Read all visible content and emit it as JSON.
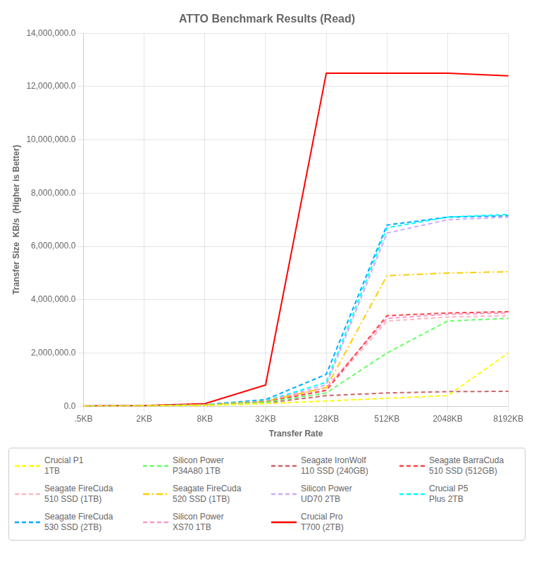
{
  "chart_data": {
    "type": "line",
    "title": "ATTO Benchmark Results (Read)",
    "xlabel": "Transfer Rate",
    "ylabel": "Transfer Size  KB/s  (Higher is Better)",
    "categories": [
      ".5KB",
      "2KB",
      "8KB",
      "32KB",
      "128KB",
      "512KB",
      "2048KB",
      "8192KB"
    ],
    "ylim": [
      0,
      14000000
    ],
    "yticks": [
      {
        "value": 0,
        "label": "0.0"
      },
      {
        "value": 2000000,
        "label": "2,000,000.0"
      },
      {
        "value": 4000000,
        "label": "4,000,000.0"
      },
      {
        "value": 6000000,
        "label": "6,000,000.0"
      },
      {
        "value": 8000000,
        "label": "8,000,000.0"
      },
      {
        "value": 10000000,
        "label": "10,000,000.0"
      },
      {
        "value": 12000000,
        "label": "12,000,000.0"
      },
      {
        "value": 14000000,
        "label": "14,000,000.0"
      }
    ],
    "grid": true,
    "legend": "bottom",
    "marker": "none",
    "series": [
      {
        "name": "Crucial P1\n1TB",
        "color": "#FFFF00",
        "line_style": "dashed",
        "values": [
          5000,
          10000,
          30000,
          100000,
          200000,
          300000,
          400000,
          2000000
        ]
      },
      {
        "name": "Silicon Power\nP34A80 1TB",
        "color": "#66FF66",
        "line_style": "dashed",
        "values": [
          6000,
          12000,
          40000,
          150000,
          500000,
          2000000,
          3200000,
          3300000
        ]
      },
      {
        "name": "Seagate IronWolf\n110 SSD (240GB)",
        "color": "#CC6666",
        "line_style": "dashed",
        "values": [
          6000,
          13000,
          40000,
          120000,
          400000,
          500000,
          550000,
          560000
        ]
      },
      {
        "name": "Seagate BarraCuda\n510 SSD (512GB)",
        "color": "#FF4444",
        "line_style": "dashed",
        "values": [
          7000,
          14000,
          50000,
          160000,
          600000,
          3400000,
          3500000,
          3550000
        ]
      },
      {
        "name": "Seagate FireCuda\n510 SSD (1TB)",
        "color": "#FFB6C1",
        "line_style": "dashed",
        "values": [
          7000,
          14000,
          50000,
          160000,
          600000,
          3200000,
          3350000,
          3400000
        ]
      },
      {
        "name": "Seagate FireCuda\n520 SSD (1TB)",
        "color": "#FFCC00",
        "line_style": "dashdot",
        "values": [
          7000,
          15000,
          55000,
          180000,
          700000,
          4900000,
          5000000,
          5050000
        ]
      },
      {
        "name": "Silicon Power\nUD70 2TB",
        "color": "#CCAAFF",
        "line_style": "dashed",
        "values": [
          7000,
          14000,
          55000,
          190000,
          800000,
          6500000,
          7000000,
          7100000
        ]
      },
      {
        "name": "Crucial P5\nPlus 2TB",
        "color": "#00FFFF",
        "line_style": "dashed",
        "values": [
          8000,
          16000,
          60000,
          200000,
          900000,
          6700000,
          7100000,
          7200000
        ]
      },
      {
        "name": "Seagate FireCuda\n530 SSD (2TB)",
        "color": "#00AAFF",
        "line_style": "dashed",
        "values": [
          8000,
          17000,
          65000,
          250000,
          1200000,
          6800000,
          7100000,
          7150000
        ]
      },
      {
        "name": "Silicon Power\nXS70 1TB",
        "color": "#FF99CC",
        "line_style": "dashed",
        "values": [
          7000,
          14000,
          50000,
          180000,
          700000,
          3300000,
          3450000,
          3500000
        ]
      },
      {
        "name": "Crucial Pro\nT700 (2TB)",
        "color": "#FF0000",
        "line_style": "solid",
        "values": [
          10000,
          25000,
          100000,
          800000,
          12500000,
          12500000,
          12500000,
          12400000
        ]
      }
    ]
  }
}
